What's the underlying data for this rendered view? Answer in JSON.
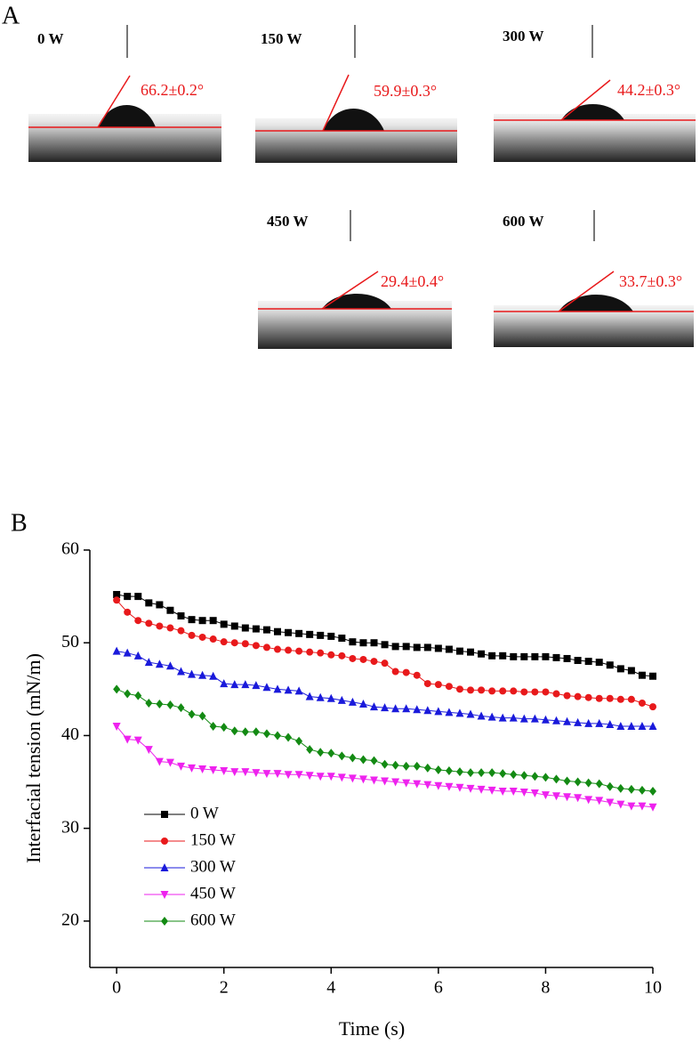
{
  "panel_a": {
    "label": "A",
    "images": [
      {
        "power": "0 W",
        "angle": "66.2±0.2°"
      },
      {
        "power": "150 W",
        "angle": "59.9±0.3°"
      },
      {
        "power": "300 W",
        "angle": "44.2±0.3°"
      },
      {
        "power": "450 W",
        "angle": "29.4±0.4°"
      },
      {
        "power": "600 W",
        "angle": "33.7±0.3°"
      }
    ]
  },
  "panel_b": {
    "label": "B"
  },
  "chart_data": {
    "type": "line",
    "x_label": "Time (s)",
    "y_label": "Interfacial tension (mN/m)",
    "x": [
      0,
      0.2,
      0.4,
      0.6,
      0.8,
      1,
      1.2,
      1.4,
      1.6,
      1.8,
      2,
      2.2,
      2.4,
      2.6,
      2.8,
      3,
      3.2,
      3.4,
      3.6,
      3.8,
      4,
      4.2,
      4.4,
      4.6,
      4.8,
      5,
      5.2,
      5.4,
      5.6,
      5.8,
      6,
      6.2,
      6.4,
      6.6,
      6.8,
      7,
      7.2,
      7.4,
      7.6,
      7.8,
      8,
      8.2,
      8.4,
      8.6,
      8.8,
      9,
      9.2,
      9.4,
      9.6,
      9.8,
      10
    ],
    "series": [
      {
        "name": "0 W",
        "color": "#000000",
        "marker": "square",
        "values": [
          55.2,
          55,
          55,
          54.3,
          54.1,
          53.5,
          52.9,
          52.5,
          52.4,
          52.4,
          52.0,
          51.8,
          51.6,
          51.5,
          51.4,
          51.2,
          51.1,
          51.0,
          50.9,
          50.8,
          50.7,
          50.5,
          50.1,
          50.0,
          50.0,
          49.8,
          49.6,
          49.6,
          49.5,
          49.5,
          49.4,
          49.3,
          49.1,
          49.0,
          48.8,
          48.6,
          48.6,
          48.5,
          48.5,
          48.5,
          48.5,
          48.4,
          48.3,
          48.1,
          48.0,
          47.9,
          47.6,
          47.2,
          47.0,
          46.5,
          46.4
        ]
      },
      {
        "name": "150 W",
        "color": "#e8191b",
        "marker": "circle",
        "values": [
          54.6,
          53.3,
          52.4,
          52.1,
          51.8,
          51.6,
          51.3,
          50.8,
          50.6,
          50.4,
          50.1,
          50.0,
          49.9,
          49.7,
          49.5,
          49.3,
          49.2,
          49.1,
          49.0,
          48.9,
          48.7,
          48.6,
          48.3,
          48.2,
          48.0,
          47.8,
          46.9,
          46.8,
          46.5,
          45.6,
          45.5,
          45.3,
          45.0,
          44.9,
          44.9,
          44.8,
          44.8,
          44.8,
          44.7,
          44.7,
          44.7,
          44.5,
          44.3,
          44.2,
          44.1,
          44.0,
          44.0,
          43.9,
          43.9,
          43.5,
          43.1
        ]
      },
      {
        "name": "300 W",
        "color": "#1a1adb",
        "marker": "triangle-up",
        "values": [
          49.1,
          48.9,
          48.6,
          47.9,
          47.7,
          47.5,
          46.9,
          46.6,
          46.5,
          46.4,
          45.6,
          45.5,
          45.5,
          45.4,
          45.2,
          45.0,
          44.9,
          44.8,
          44.2,
          44.1,
          44.0,
          43.8,
          43.6,
          43.4,
          43.1,
          43.0,
          42.9,
          42.9,
          42.8,
          42.7,
          42.6,
          42.5,
          42.4,
          42.3,
          42.1,
          42.0,
          41.9,
          41.9,
          41.8,
          41.8,
          41.7,
          41.6,
          41.5,
          41.4,
          41.3,
          41.3,
          41.2,
          41.0,
          41.0,
          41.0,
          41.0
        ]
      },
      {
        "name": "450 W",
        "color": "#ee22ee",
        "marker": "triangle-down",
        "values": [
          41.0,
          39.6,
          39.5,
          38.5,
          37.2,
          37.1,
          36.7,
          36.5,
          36.4,
          36.3,
          36.2,
          36.1,
          36.1,
          36.0,
          35.9,
          35.9,
          35.8,
          35.8,
          35.7,
          35.6,
          35.6,
          35.5,
          35.4,
          35.3,
          35.2,
          35.1,
          35.0,
          34.9,
          34.8,
          34.7,
          34.6,
          34.5,
          34.4,
          34.3,
          34.2,
          34.1,
          34.0,
          34.0,
          33.9,
          33.8,
          33.6,
          33.5,
          33.4,
          33.3,
          33.1,
          33.0,
          32.8,
          32.6,
          32.4,
          32.4,
          32.3
        ]
      },
      {
        "name": "600 W",
        "color": "#138a13",
        "marker": "diamond",
        "values": [
          45.0,
          44.5,
          44.3,
          43.5,
          43.4,
          43.3,
          43.0,
          42.3,
          42.1,
          41.0,
          40.9,
          40.5,
          40.4,
          40.4,
          40.2,
          40.0,
          39.8,
          39.4,
          38.5,
          38.2,
          38.1,
          37.8,
          37.6,
          37.4,
          37.3,
          36.9,
          36.8,
          36.7,
          36.7,
          36.5,
          36.3,
          36.2,
          36.1,
          36.0,
          36.0,
          36.0,
          35.9,
          35.8,
          35.7,
          35.6,
          35.5,
          35.3,
          35.1,
          35.0,
          34.9,
          34.8,
          34.5,
          34.3,
          34.2,
          34.1,
          34.0
        ]
      }
    ],
    "xlim": [
      -0.5,
      10
    ],
    "xticks": [
      0,
      2,
      4,
      6,
      8,
      10
    ],
    "ylim": [
      15,
      60
    ],
    "yticks": [
      20,
      30,
      40,
      50,
      60
    ],
    "grid": false,
    "legend": "lower left"
  }
}
